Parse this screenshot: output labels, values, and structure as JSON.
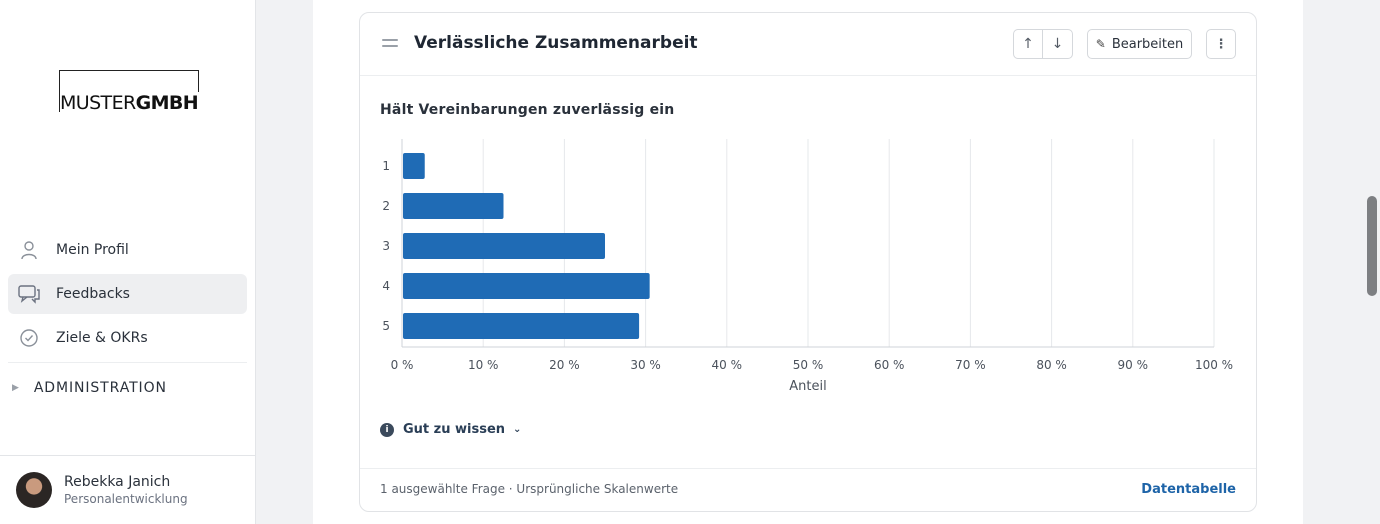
{
  "logo": {
    "part1": "MUSTER",
    "part2": "GMBH"
  },
  "nav": {
    "items": [
      {
        "label": "Mein Profil",
        "icon": "person-icon",
        "active": false
      },
      {
        "label": "Feedbacks",
        "icon": "chat-icon",
        "active": true
      },
      {
        "label": "Ziele & OKRs",
        "icon": "check-circle-icon",
        "active": false
      }
    ],
    "admin_label": "ADMINISTRATION"
  },
  "user": {
    "name": "Rebekka Janich",
    "role": "Personalentwicklung"
  },
  "card": {
    "title": "Verlässliche Zusammenarbeit",
    "edit_label": "Bearbeiten",
    "question": "Hält Vereinbarungen zuverlässig ein",
    "hint_label": "Gut zu wissen",
    "footer_info": "1 ausgewählte Frage · Ursprüngliche Skalenwerte",
    "footer_link": "Datentabelle"
  },
  "chart_data": {
    "type": "bar",
    "orientation": "horizontal",
    "categories": [
      "1",
      "2",
      "3",
      "4",
      "5"
    ],
    "values": [
      2.8,
      12.5,
      25,
      30.5,
      29.2
    ],
    "xlabel": "Anteil",
    "ylabel": "",
    "xlim": [
      0,
      100
    ],
    "xticks": [
      "0 %",
      "10 %",
      "20 %",
      "30 %",
      "40 %",
      "50 %",
      "60 %",
      "70 %",
      "80 %",
      "90 %",
      "100 %"
    ],
    "grid": true,
    "bar_color": "#1f6bb5"
  },
  "colors": {
    "accent": "#1e64a8",
    "bar": "#1f6bb5"
  }
}
